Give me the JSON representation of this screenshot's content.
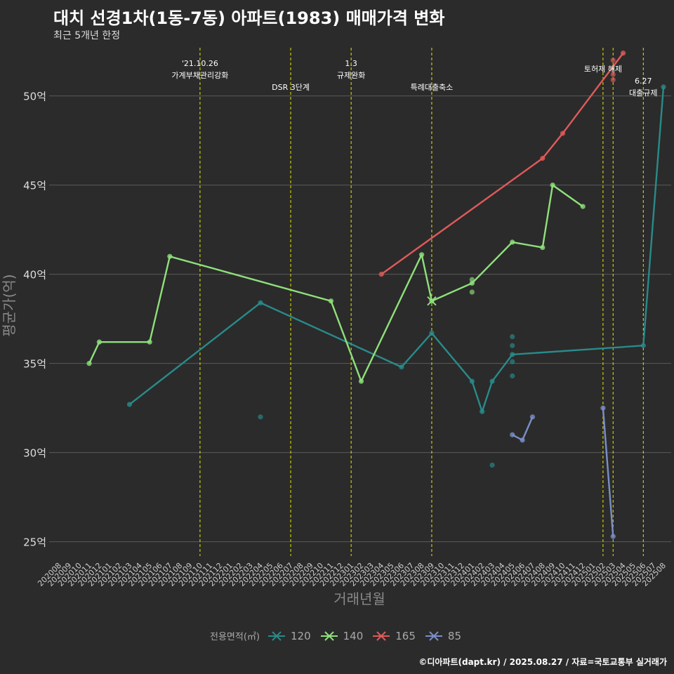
{
  "header": {
    "title": "대치 선경1차(1동-7동) 아파트(1983) 매매가격 변화",
    "subtitle": "최근 5개년 한정"
  },
  "caption": "©디아파트(dapt.kr) / 2025.08.27 / 자료=국토교통부 실거래가",
  "colors": {
    "bg": "#2b2b2b",
    "grid": "#5a5a5a",
    "vline": "#e6e600",
    "s120": "#2a8a8a",
    "s140": "#8fe07a",
    "s165": "#e05a5a",
    "s85": "#7a8fc8"
  },
  "chart_data": {
    "type": "line",
    "title": "대치 선경1차(1동-7동) 아파트(1983) 매매가격 변화",
    "xlabel": "거래년월",
    "ylabel": "평균가(억)",
    "ylim": [
      24.2,
      52.7
    ],
    "yticks": [
      25,
      30,
      35,
      40,
      45,
      50
    ],
    "ytick_labels": [
      "25억",
      "30억",
      "35억",
      "40억",
      "45억",
      "50억"
    ],
    "x_categories": [
      "202008",
      "202009",
      "202010",
      "202011",
      "202012",
      "202101",
      "202102",
      "202103",
      "202104",
      "202105",
      "202106",
      "202107",
      "202108",
      "202109",
      "202110",
      "202111",
      "202112",
      "202201",
      "202202",
      "202203",
      "202204",
      "202205",
      "202206",
      "202207",
      "202208",
      "202209",
      "202210",
      "202211",
      "202212",
      "202301",
      "202302",
      "202303",
      "202304",
      "202305",
      "202306",
      "202307",
      "202308",
      "202309",
      "202310",
      "202311",
      "202312",
      "202401",
      "202402",
      "202403",
      "202404",
      "202405",
      "202406",
      "202407",
      "202408",
      "202409",
      "202410",
      "202411",
      "202412",
      "202501",
      "202502",
      "202503",
      "202504",
      "202505",
      "202506",
      "202507",
      "202508"
    ],
    "legend_title": "전용면적(㎡)",
    "series": [
      {
        "name": "120",
        "color": "#2a8a8a",
        "line": [
          [
            "202103",
            32.7
          ],
          [
            "202204",
            38.4
          ],
          [
            "202306",
            34.8
          ],
          [
            "202309",
            36.7
          ],
          [
            "202401",
            34.0
          ],
          [
            "202402",
            32.3
          ],
          [
            "202403",
            34.0
          ],
          [
            "202405",
            35.5
          ],
          [
            "202506",
            36.0
          ],
          [
            "202508",
            50.5
          ]
        ],
        "points": [
          [
            "202204",
            32.0
          ],
          [
            "202403",
            29.3
          ],
          [
            "202405",
            36.5
          ],
          [
            "202405",
            36.0
          ],
          [
            "202405",
            35.1
          ],
          [
            "202405",
            34.3
          ]
        ]
      },
      {
        "name": "140",
        "color": "#8fe07a",
        "line": [
          [
            "202011",
            35.0
          ],
          [
            "202012",
            36.2
          ],
          [
            "202105",
            36.2
          ],
          [
            "202107",
            41.0
          ],
          [
            "202211",
            38.5
          ],
          [
            "202302",
            34.0
          ],
          [
            "202308",
            41.1
          ],
          [
            "202309",
            38.5
          ],
          [
            "202401",
            39.5
          ],
          [
            "202405",
            41.8
          ],
          [
            "202408",
            41.5
          ],
          [
            "202409",
            45.0
          ],
          [
            "202412",
            43.8
          ]
        ],
        "points": [
          [
            "202401",
            39.7
          ],
          [
            "202401",
            39.0
          ]
        ]
      },
      {
        "name": "165",
        "color": "#e05a5a",
        "line": [
          [
            "202304",
            40.0
          ],
          [
            "202408",
            46.5
          ],
          [
            "202410",
            47.9
          ],
          [
            "202504",
            52.4
          ]
        ],
        "points": [
          [
            "202503",
            52.0
          ],
          [
            "202503",
            51.2
          ],
          [
            "202503",
            50.9
          ]
        ]
      },
      {
        "name": "85",
        "color": "#7a8fc8",
        "line": [
          [
            "202405",
            31.0
          ],
          [
            "202406",
            30.7
          ],
          [
            "202407",
            32.0
          ]
        ],
        "line2": [
          [
            "202502",
            32.5
          ],
          [
            "202503",
            25.3
          ]
        ],
        "points": []
      }
    ],
    "annotations": [
      {
        "x": "202110",
        "lines": [
          "'21.10.26",
          "가계부채관리강화"
        ]
      },
      {
        "x": "202207",
        "lines": [
          "DSR 3단계"
        ]
      },
      {
        "x": "202301",
        "lines": [
          "1.3",
          "규제완화"
        ]
      },
      {
        "x": "202309",
        "lines": [
          "특례대출축소"
        ]
      },
      {
        "x": "202502",
        "lines": [
          "토허제 해제"
        ]
      },
      {
        "x": "202503",
        "lines": []
      },
      {
        "x": "202506",
        "lines": [
          "6.27",
          "대출규제"
        ]
      }
    ]
  }
}
